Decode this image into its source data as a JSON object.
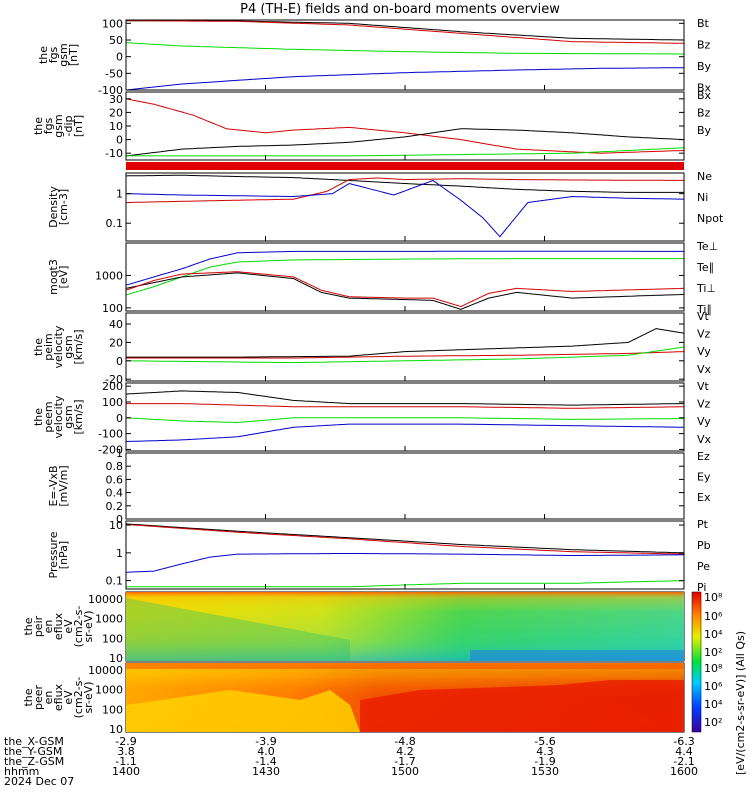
{
  "title": "P4 (TH-E) fields and on-board moments overview",
  "colors": {
    "black": "#000000",
    "red": "#d40000",
    "green": "#00dd00",
    "blue": "#0000cc"
  },
  "chart_data": [
    {
      "type": "line",
      "ylabel": [
        "the",
        "fgs",
        "gsm",
        "[nT]"
      ],
      "yticks": [
        100,
        50,
        0,
        -50,
        -100
      ],
      "ylim": [
        -100,
        110
      ],
      "legend": [
        {
          "label": "Bt",
          "color": "#000000"
        },
        {
          "label": "Bz",
          "color": "#d40000"
        },
        {
          "label": "By",
          "color": "#00dd00"
        },
        {
          "label": "Bx",
          "color": "#0000cc"
        }
      ],
      "series": [
        {
          "color": "#000000",
          "x": [
            0,
            0.2,
            0.4,
            0.6,
            0.8,
            1
          ],
          "values": [
            108,
            107,
            100,
            75,
            55,
            50
          ]
        },
        {
          "color": "#d40000",
          "x": [
            0,
            0.2,
            0.4,
            0.6,
            0.8,
            1
          ],
          "values": [
            108,
            106,
            95,
            70,
            45,
            40
          ]
        },
        {
          "color": "#00dd00",
          "x": [
            0,
            0.1,
            0.3,
            0.5,
            0.7,
            1
          ],
          "values": [
            42,
            32,
            22,
            15,
            10,
            8
          ]
        },
        {
          "color": "#0000cc",
          "x": [
            0,
            0.1,
            0.3,
            0.5,
            0.7,
            0.85,
            1
          ],
          "values": [
            -100,
            -82,
            -60,
            -48,
            -40,
            -35,
            -33
          ]
        }
      ]
    },
    {
      "type": "line",
      "ylabel": [
        "the",
        "fgs",
        "gsm",
        "-dip",
        "[nT]"
      ],
      "yticks": [
        30,
        20,
        10,
        0,
        -10
      ],
      "ylim": [
        -15,
        35
      ],
      "legend": [
        {
          "label": "Bx",
          "color": "#000000"
        },
        {
          "label": "Bz",
          "color": "#d40000"
        },
        {
          "label": "By",
          "color": "#00dd00"
        }
      ],
      "series": [
        {
          "color": "#d40000",
          "x": [
            0,
            0.05,
            0.12,
            0.18,
            0.25,
            0.3,
            0.4,
            0.5,
            0.6,
            0.7,
            0.85,
            1
          ],
          "values": [
            30,
            26,
            18,
            8,
            5,
            7,
            9,
            5,
            0,
            -7,
            -10,
            -8
          ]
        },
        {
          "color": "#000000",
          "x": [
            0,
            0.1,
            0.2,
            0.3,
            0.4,
            0.5,
            0.6,
            0.7,
            0.8,
            0.9,
            1
          ],
          "values": [
            -12,
            -7,
            -5,
            -4,
            -2,
            2,
            8,
            7,
            5,
            2,
            0
          ]
        },
        {
          "color": "#00dd00",
          "x": [
            0,
            0.2,
            0.4,
            0.6,
            0.8,
            1
          ],
          "values": [
            -12,
            -12,
            -12,
            -11,
            -10,
            -6
          ]
        }
      ]
    },
    {
      "type": "line",
      "ylabel": [
        "Density",
        "[cm-3]"
      ],
      "yticks": [
        1.0,
        0.1
      ],
      "ylim": [
        0.025,
        5
      ],
      "log": true,
      "legend": [
        {
          "label": "Ne",
          "color": "#d40000"
        },
        {
          "label": "Ni",
          "color": "#000000"
        },
        {
          "label": "Npot",
          "color": "#0000cc"
        }
      ],
      "series": [
        {
          "color": "#000000",
          "x": [
            0,
            0.1,
            0.2,
            0.3,
            0.4,
            0.5,
            0.6,
            0.7,
            0.8,
            0.9,
            1
          ],
          "values": [
            4,
            4.2,
            3.8,
            3.5,
            2.8,
            2.2,
            1.8,
            1.4,
            1.2,
            1.1,
            1.1
          ]
        },
        {
          "color": "#d40000",
          "x": [
            0,
            0.1,
            0.2,
            0.3,
            0.36,
            0.4,
            0.45,
            0.5,
            0.6,
            0.7,
            0.8,
            1
          ],
          "values": [
            0.5,
            0.55,
            0.6,
            0.65,
            1.2,
            3,
            3.4,
            3,
            3.2,
            3,
            2.9,
            2.8
          ]
        },
        {
          "color": "#0000cc",
          "x": [
            0,
            0.1,
            0.2,
            0.3,
            0.37,
            0.4,
            0.48,
            0.55,
            0.6,
            0.64,
            0.67,
            0.72,
            0.8,
            0.9,
            1
          ],
          "values": [
            1.0,
            0.9,
            0.85,
            0.8,
            1.0,
            2.2,
            0.9,
            2.8,
            0.6,
            0.15,
            0.035,
            0.5,
            0.8,
            0.7,
            0.65
          ]
        }
      ]
    },
    {
      "type": "line",
      "ylabel": [
        "moqt3",
        "[eV]"
      ],
      "yticks": [
        1000,
        100
      ],
      "ylim": [
        80,
        10000
      ],
      "log": true,
      "legend": [
        {
          "label": "Te⊥",
          "color": "#d40000"
        },
        {
          "label": "Te∥",
          "color": "#000000"
        },
        {
          "label": "Ti⊥",
          "color": "#d40000"
        },
        {
          "label": "Ti∥",
          "color": "#00dd00"
        }
      ],
      "series": [
        {
          "color": "#0000cc",
          "x": [
            0,
            0.05,
            0.1,
            0.15,
            0.2,
            0.3,
            0.5,
            0.7,
            1
          ],
          "values": [
            500,
            900,
            1600,
            3200,
            5000,
            5500,
            5500,
            5600,
            5500
          ]
        },
        {
          "color": "#00dd00",
          "x": [
            0,
            0.05,
            0.1,
            0.15,
            0.2,
            0.3,
            0.5,
            0.7,
            1
          ],
          "values": [
            250,
            450,
            900,
            1800,
            2600,
            3000,
            3200,
            3300,
            3300
          ]
        },
        {
          "color": "#000000",
          "x": [
            0,
            0.05,
            0.1,
            0.2,
            0.3,
            0.35,
            0.4,
            0.5,
            0.55,
            0.6,
            0.65,
            0.7,
            0.8,
            1
          ],
          "values": [
            400,
            600,
            900,
            1200,
            800,
            300,
            200,
            180,
            170,
            90,
            200,
            300,
            200,
            260
          ]
        },
        {
          "color": "#d40000",
          "x": [
            0,
            0.05,
            0.1,
            0.2,
            0.3,
            0.35,
            0.4,
            0.5,
            0.55,
            0.6,
            0.65,
            0.7,
            0.8,
            1
          ],
          "values": [
            350,
            700,
            1100,
            1300,
            900,
            350,
            220,
            200,
            200,
            110,
            280,
            400,
            320,
            400
          ]
        }
      ]
    },
    {
      "type": "line",
      "ylabel": [
        "the",
        "peim",
        "velocity",
        "gsm",
        "[km/s]"
      ],
      "yticks": [
        40,
        20,
        0,
        -20
      ],
      "ylim": [
        -22,
        52
      ],
      "legend": [
        {
          "label": "Vt",
          "color": "#000000"
        },
        {
          "label": "Vz",
          "color": "#d40000"
        },
        {
          "label": "Vy",
          "color": "#00dd00"
        },
        {
          "label": "Vx",
          "color": "#0000cc"
        }
      ],
      "series": [
        {
          "color": "#000000",
          "x": [
            0,
            0.2,
            0.4,
            0.5,
            0.6,
            0.7,
            0.8,
            0.9,
            0.95,
            1
          ],
          "values": [
            4,
            4,
            5,
            10,
            12,
            14,
            16,
            20,
            35,
            30
          ]
        },
        {
          "color": "#d40000",
          "x": [
            0,
            0.3,
            0.5,
            0.7,
            0.9,
            1
          ],
          "values": [
            3,
            3,
            5,
            6,
            8,
            10
          ]
        },
        {
          "color": "#00dd00",
          "x": [
            0,
            0.3,
            0.5,
            0.7,
            0.9,
            1
          ],
          "values": [
            0,
            -2,
            0,
            2,
            6,
            15
          ]
        }
      ]
    },
    {
      "type": "line",
      "ylabel": [
        "the",
        "peem",
        "velocity",
        "gsm",
        "[km/s]"
      ],
      "yticks": [
        200,
        100,
        0,
        -100,
        -200
      ],
      "ylim": [
        -210,
        220
      ],
      "legend": [
        {
          "label": "Vt",
          "color": "#000000"
        },
        {
          "label": "Vz",
          "color": "#d40000"
        },
        {
          "label": "Vy",
          "color": "#00dd00"
        },
        {
          "label": "Vx",
          "color": "#0000cc"
        }
      ],
      "series": [
        {
          "color": "#000000",
          "x": [
            0,
            0.1,
            0.2,
            0.3,
            0.4,
            0.6,
            0.8,
            1
          ],
          "values": [
            150,
            170,
            160,
            110,
            90,
            90,
            80,
            90
          ]
        },
        {
          "color": "#d40000",
          "x": [
            0,
            0.1,
            0.2,
            0.3,
            0.4,
            0.6,
            0.8,
            1
          ],
          "values": [
            90,
            90,
            80,
            70,
            70,
            70,
            60,
            70
          ]
        },
        {
          "color": "#00dd00",
          "x": [
            0,
            0.1,
            0.2,
            0.3,
            0.4,
            0.6,
            0.8,
            1
          ],
          "values": [
            0,
            -20,
            -30,
            0,
            0,
            0,
            -10,
            -5
          ]
        },
        {
          "color": "#0000cc",
          "x": [
            0,
            0.1,
            0.2,
            0.3,
            0.4,
            0.6,
            0.8,
            1
          ],
          "values": [
            -150,
            -140,
            -120,
            -60,
            -40,
            -40,
            -50,
            -60
          ]
        }
      ]
    },
    {
      "type": "line",
      "ylabel": [
        "E=-VxB",
        "[mV/m]"
      ],
      "yticks": [
        1.0,
        0.8,
        0.6,
        0.4,
        0.2,
        0.0
      ],
      "ylim": [
        0,
        1
      ],
      "legend": [
        {
          "label": "Ez",
          "color": "#d40000"
        },
        {
          "label": "Ey",
          "color": "#00dd00"
        },
        {
          "label": "Ex",
          "color": "#0000cc"
        }
      ],
      "series": []
    },
    {
      "type": "line",
      "ylabel": [
        "Pressure",
        "[nPa]"
      ],
      "yticks": [
        10.0,
        1.0,
        0.1
      ],
      "ylim": [
        0.05,
        14
      ],
      "log": true,
      "legend": [
        {
          "label": "Pt",
          "color": "#000000"
        },
        {
          "label": "Pb",
          "color": "#d40000"
        },
        {
          "label": "Pe",
          "color": "#00dd00"
        },
        {
          "label": "Pi",
          "color": "#0000cc"
        }
      ],
      "series": [
        {
          "color": "#000000",
          "x": [
            0,
            0.2,
            0.4,
            0.6,
            0.8,
            1
          ],
          "values": [
            11,
            6,
            3.5,
            2,
            1.3,
            1.0
          ]
        },
        {
          "color": "#d40000",
          "x": [
            0,
            0.2,
            0.4,
            0.6,
            0.8,
            1
          ],
          "values": [
            10.5,
            5.5,
            3.2,
            1.7,
            1.1,
            0.9
          ]
        },
        {
          "color": "#0000cc",
          "x": [
            0,
            0.05,
            0.1,
            0.15,
            0.2,
            0.4,
            0.6,
            0.8,
            1
          ],
          "values": [
            0.2,
            0.22,
            0.4,
            0.7,
            0.9,
            0.95,
            0.9,
            0.8,
            0.85
          ]
        },
        {
          "color": "#00dd00",
          "x": [
            0,
            0.2,
            0.4,
            0.5,
            0.6,
            0.8,
            0.9,
            1
          ],
          "values": [
            0.06,
            0.06,
            0.06,
            0.07,
            0.08,
            0.08,
            0.09,
            0.1
          ]
        }
      ]
    },
    {
      "type": "heatmap",
      "ylabel": [
        "the",
        "peir",
        "en",
        "eflux",
        "eV",
        "(cm2-s-",
        "sr-eV)"
      ],
      "yticks": [
        10000,
        1000,
        100,
        10
      ]
    },
    {
      "type": "heatmap",
      "ylabel": [
        "the",
        "peer",
        "en",
        "eflux",
        "eV",
        "(cm2-s-",
        "sr-eV)"
      ],
      "yticks": [
        10000,
        1000,
        100,
        10
      ]
    }
  ],
  "colorbar": {
    "ticks": [
      "10⁸",
      "10⁶",
      "10⁴",
      "10²"
    ],
    "label": "[eV/(cm2-s-sr-eV)] (All Qs)"
  },
  "xaxis": {
    "rows": [
      {
        "label": "the_X-GSM",
        "values": [
          "-2.9",
          "-3.9",
          "-4.8",
          "-5.6",
          "-6.3"
        ]
      },
      {
        "label": "the_Y-GSM",
        "values": [
          "3.8",
          "4.0",
          "4.2",
          "4.3",
          "4.4"
        ]
      },
      {
        "label": "the_Z-GSM",
        "values": [
          "-1.1",
          "-1.4",
          "-1.7",
          "-1.9",
          "-2.1"
        ]
      },
      {
        "label": "hhmm",
        "values": [
          "1400",
          "1430",
          "1500",
          "1530",
          "1600"
        ]
      }
    ],
    "date": "2024 Dec 07"
  }
}
